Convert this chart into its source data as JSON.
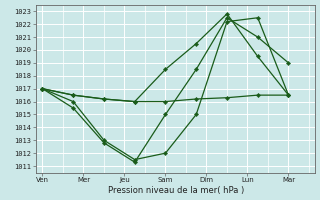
{
  "xlabel": "Pression niveau de la mer( hPa )",
  "bg_color": "#cce8e8",
  "grid_color": "#ffffff",
  "line_color": "#1a5c1a",
  "ylim": [
    1010.5,
    1023.5
  ],
  "yticks": [
    1011,
    1012,
    1013,
    1014,
    1015,
    1016,
    1017,
    1018,
    1019,
    1020,
    1021,
    1022,
    1023
  ],
  "xlim": [
    -0.3,
    13.3
  ],
  "series": [
    {
      "x": [
        0,
        1.5,
        3,
        4.5,
        6,
        7.5,
        9,
        10.5,
        12
      ],
      "y": [
        1017.0,
        1016.5,
        1016.2,
        1016.0,
        1016.0,
        1016.2,
        1016.3,
        1016.5,
        1016.5
      ]
    },
    {
      "x": [
        0,
        1.5,
        3,
        4.5,
        6,
        7.5,
        9,
        10.5,
        12
      ],
      "y": [
        1017.0,
        1016.0,
        1013.0,
        1011.5,
        1012.0,
        1015.0,
        1022.2,
        1022.5,
        1016.5
      ]
    },
    {
      "x": [
        0,
        1.5,
        3,
        4.5,
        6,
        7.5,
        9,
        10.5,
        12
      ],
      "y": [
        1017.0,
        1015.5,
        1012.8,
        1011.3,
        1015.0,
        1018.5,
        1022.5,
        1021.0,
        1019.0
      ]
    },
    {
      "x": [
        0,
        1.5,
        3,
        4.5,
        6,
        7.5,
        9,
        10.5,
        12
      ],
      "y": [
        1017.0,
        1016.5,
        1016.2,
        1016.0,
        1018.5,
        1020.5,
        1022.8,
        1019.5,
        1016.5
      ]
    }
  ],
  "major_xtick_positions": [
    0,
    2,
    4,
    6,
    8,
    10,
    12
  ],
  "major_xtick_labels": [
    "Ven",
    "Mer",
    "Jeu",
    "Sam",
    "Dim",
    "Lun",
    "Mar"
  ],
  "minor_xtick_step": 1
}
